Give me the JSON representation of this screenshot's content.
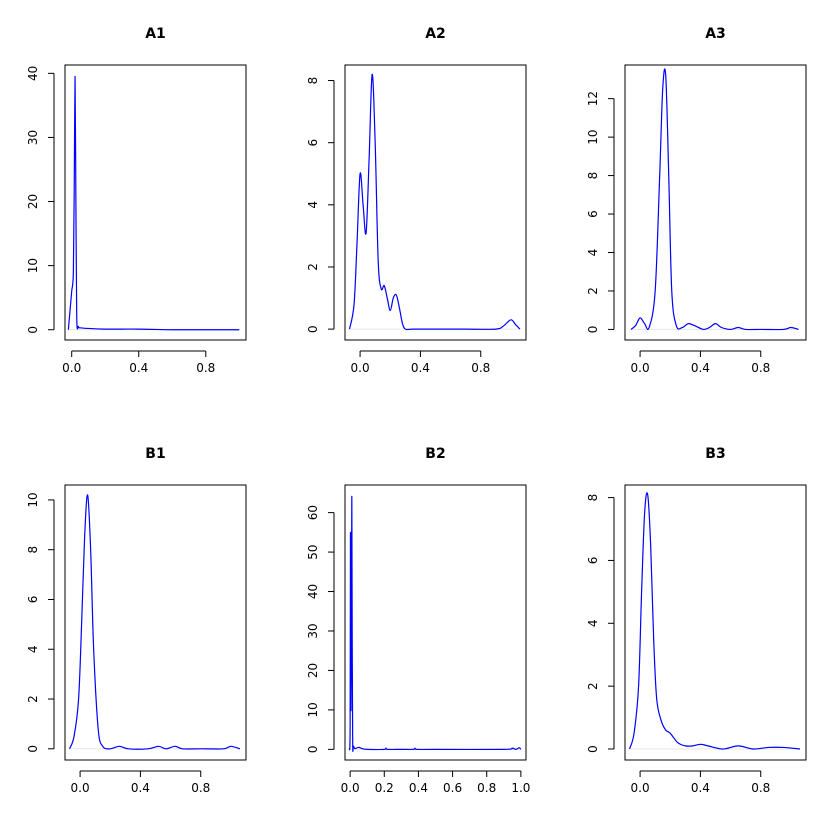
{
  "chart_data": [
    {
      "type": "line",
      "title": "A1",
      "color": "#0000ff",
      "xlim": [
        -0.04,
        1.04
      ],
      "ylim": [
        -1.6,
        41.3
      ],
      "xticks": [
        0,
        0.4,
        0.8
      ],
      "xtick_labels": [
        "0.0",
        "0.4",
        "0.8"
      ],
      "yticks": [
        0,
        10,
        20,
        30,
        40
      ],
      "ytick_labels": [
        "0",
        "10",
        "20",
        "30",
        "40"
      ],
      "x": [
        -0.02,
        -0.01,
        0.0,
        0.01,
        0.015,
        0.02,
        0.025,
        0.03,
        0.04,
        0.05,
        0.1,
        0.2,
        0.4,
        0.6,
        0.8,
        1.0
      ],
      "y": [
        0,
        3,
        6,
        9,
        22,
        39.5,
        20,
        2,
        0.5,
        0.3,
        0.2,
        0.1,
        0.1,
        0,
        0,
        0
      ]
    },
    {
      "type": "line",
      "title": "A2",
      "color": "#0000ff",
      "xlim": [
        -0.1,
        1.1
      ],
      "ylim": [
        -0.35,
        8.5
      ],
      "xticks": [
        0,
        0.4,
        0.8
      ],
      "xtick_labels": [
        "0.0",
        "0.4",
        "0.8"
      ],
      "yticks": [
        0,
        2,
        4,
        6,
        8
      ],
      "ytick_labels": [
        "0",
        "2",
        "4",
        "6",
        "8"
      ],
      "x": [
        -0.07,
        -0.04,
        -0.02,
        0.0,
        0.02,
        0.04,
        0.06,
        0.08,
        0.1,
        0.12,
        0.14,
        0.16,
        0.18,
        0.2,
        0.22,
        0.24,
        0.26,
        0.28,
        0.3,
        0.35,
        0.5,
        0.7,
        0.9,
        0.95,
        1.0,
        1.03,
        1.06
      ],
      "y": [
        0,
        0.8,
        2.8,
        5.0,
        4.0,
        3.1,
        5.5,
        8.2,
        6.0,
        2.2,
        1.3,
        1.4,
        1.0,
        0.6,
        1.0,
        1.1,
        0.7,
        0.2,
        0,
        0,
        0,
        0,
        0,
        0.1,
        0.3,
        0.15,
        0
      ]
    },
    {
      "type": "line",
      "title": "A3",
      "color": "#0000ff",
      "xlim": [
        -0.1,
        1.1
      ],
      "ylim": [
        -0.55,
        13.75
      ],
      "xticks": [
        0,
        0.4,
        0.8
      ],
      "xtick_labels": [
        "0.0",
        "0.4",
        "0.8"
      ],
      "yticks": [
        0,
        2,
        4,
        6,
        8,
        10,
        12
      ],
      "ytick_labels": [
        "0",
        "2",
        "4",
        "6",
        "8",
        "10",
        "12"
      ],
      "x": [
        -0.06,
        -0.03,
        0.0,
        0.03,
        0.06,
        0.1,
        0.13,
        0.15,
        0.17,
        0.19,
        0.21,
        0.24,
        0.28,
        0.32,
        0.36,
        0.42,
        0.46,
        0.5,
        0.54,
        0.6,
        0.65,
        0.7,
        0.8,
        0.95,
        1.0,
        1.05
      ],
      "y": [
        0,
        0.2,
        0.6,
        0.3,
        0.1,
        2.0,
        8.0,
        12.5,
        13.2,
        8.0,
        2.0,
        0.2,
        0.1,
        0.3,
        0.2,
        0,
        0.1,
        0.3,
        0.1,
        0,
        0.1,
        0,
        0,
        0,
        0.1,
        0
      ]
    },
    {
      "type": "line",
      "title": "B1",
      "color": "#0000ff",
      "xlim": [
        -0.1,
        1.1
      ],
      "ylim": [
        -0.45,
        10.6
      ],
      "xticks": [
        0,
        0.4,
        0.8
      ],
      "xtick_labels": [
        "0.0",
        "0.4",
        "0.8"
      ],
      "yticks": [
        0,
        2,
        4,
        6,
        8,
        10
      ],
      "ytick_labels": [
        "0",
        "2",
        "4",
        "6",
        "8",
        "10"
      ],
      "x": [
        -0.07,
        -0.04,
        -0.01,
        0.01,
        0.03,
        0.05,
        0.07,
        0.09,
        0.12,
        0.15,
        0.2,
        0.26,
        0.32,
        0.45,
        0.52,
        0.57,
        0.63,
        0.68,
        0.8,
        0.95,
        1.0,
        1.06
      ],
      "y": [
        0,
        0.5,
        2.0,
        5.0,
        8.5,
        10.2,
        8.0,
        4.0,
        0.8,
        0.1,
        0,
        0.1,
        0,
        0,
        0.1,
        0,
        0.1,
        0,
        0,
        0,
        0.1,
        0
      ]
    },
    {
      "type": "line",
      "title": "B2",
      "color": "#0000ff",
      "xlim": [
        -0.03,
        1.03
      ],
      "ylim": [
        -2.7,
        67
      ],
      "xticks": [
        0,
        0.2,
        0.4,
        0.6,
        0.8,
        1.0
      ],
      "xtick_labels": [
        "0.0",
        "0.2",
        "0.4",
        "0.6",
        "0.8",
        "1.0"
      ],
      "yticks": [
        0,
        10,
        20,
        30,
        40,
        50,
        60
      ],
      "ytick_labels": [
        "0",
        "10",
        "20",
        "30",
        "40",
        "50",
        "60"
      ],
      "x": [
        -0.005,
        0.0,
        0.002,
        0.005,
        0.008,
        0.01,
        0.012,
        0.015,
        0.018,
        0.02,
        0.025,
        0.03,
        0.05,
        0.07,
        0.1,
        0.2,
        0.21,
        0.22,
        0.3,
        0.37,
        0.38,
        0.39,
        0.5,
        0.9,
        0.95,
        0.97,
        0.99,
        1.0
      ],
      "y": [
        0,
        5,
        55,
        10,
        40,
        64,
        30,
        2,
        0.5,
        0.8,
        0.3,
        0.2,
        0.5,
        0.2,
        0,
        0,
        0.3,
        0,
        0,
        0,
        0.3,
        0,
        0,
        0,
        0.3,
        0,
        0.4,
        0
      ]
    },
    {
      "type": "line",
      "title": "B3",
      "color": "#0000ff",
      "xlim": [
        -0.1,
        1.1
      ],
      "ylim": [
        -0.35,
        8.4
      ],
      "xticks": [
        0,
        0.4,
        0.8
      ],
      "xtick_labels": [
        "0.0",
        "0.4",
        "0.8"
      ],
      "yticks": [
        0,
        2,
        4,
        6,
        8
      ],
      "ytick_labels": [
        "0",
        "2",
        "4",
        "6",
        "8"
      ],
      "x": [
        -0.07,
        -0.04,
        -0.01,
        0.01,
        0.03,
        0.05,
        0.07,
        0.09,
        0.11,
        0.14,
        0.17,
        0.2,
        0.25,
        0.3,
        0.35,
        0.4,
        0.45,
        0.55,
        0.65,
        0.75,
        0.85,
        0.95,
        1.06
      ],
      "y": [
        0,
        0.5,
        2.0,
        5.0,
        7.5,
        8.1,
        6.5,
        3.5,
        1.6,
        0.9,
        0.6,
        0.5,
        0.2,
        0.1,
        0.1,
        0.15,
        0.1,
        0,
        0.1,
        0,
        0.05,
        0.05,
        0
      ]
    }
  ]
}
